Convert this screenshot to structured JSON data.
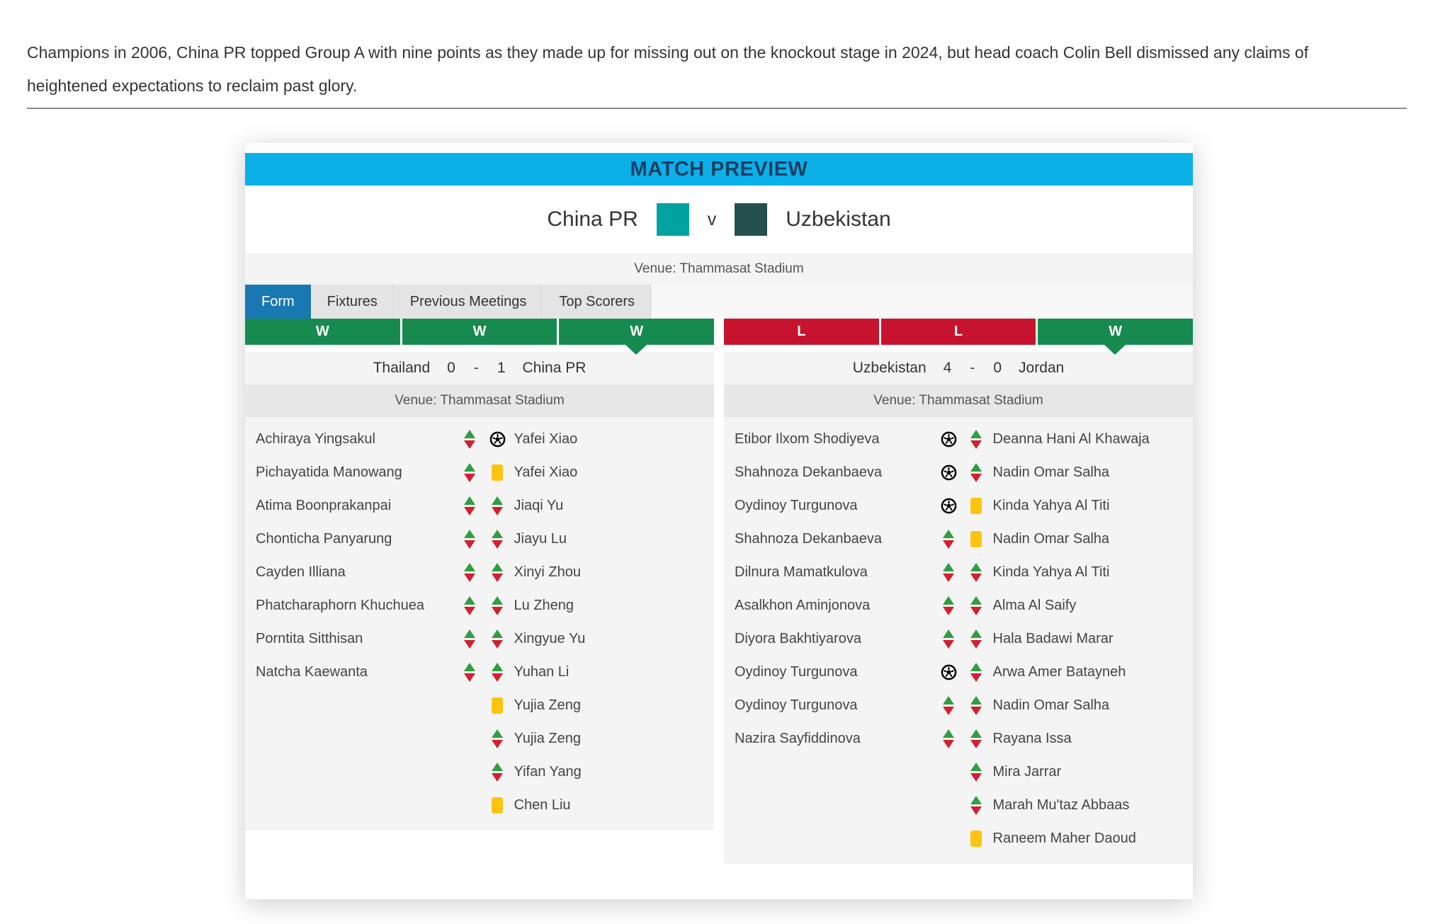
{
  "article": {
    "intro": "Champions in 2006, China PR topped Group A with nine points as they made up for missing out on the knockout stage in 2024, but head coach Colin Bell dismissed any claims of heightened expectations to reclaim past glory."
  },
  "preview": {
    "title": "MATCH PREVIEW",
    "home_team": "China PR",
    "versus": "v",
    "away_team": "Uzbekistan",
    "home_color": "#00a3a1",
    "away_color": "#234f4e",
    "venue": "Venue: Thammasat Stadium",
    "header_bg": "#0cb0e8",
    "header_text_color": "#173f63",
    "active_tab_color": "#1878b2",
    "tabs": [
      {
        "label": "Form",
        "active": true
      },
      {
        "label": "Fixtures",
        "active": false
      },
      {
        "label": "Previous Meetings",
        "active": false
      },
      {
        "label": "Top Scorers",
        "active": false
      }
    ],
    "colors": {
      "W": "#178a50",
      "L": "#c8132e"
    },
    "icon_legend": {
      "sub": "substitution-arrows-icon",
      "goal": "soccer-ball-icon",
      "yellow": "yellow-card-icon"
    },
    "panels": [
      {
        "form": [
          "W",
          "W",
          "W"
        ],
        "selected_index": 2,
        "match": {
          "home": "Thailand",
          "home_score": "0",
          "sep": "-",
          "away_score": "1",
          "away": "China PR"
        },
        "venue": "Venue: Thammasat Stadium",
        "rows": [
          {
            "left": "Achiraya Yingsakul",
            "icon1": "sub",
            "icon2": "goal",
            "right": "Yafei Xiao"
          },
          {
            "left": "Pichayatida Manowang",
            "icon1": "sub",
            "icon2": "yellow",
            "right": "Yafei Xiao"
          },
          {
            "left": "Atima Boonprakanpai",
            "icon1": "sub",
            "icon2": "sub",
            "right": "Jiaqi Yu"
          },
          {
            "left": "Chonticha Panyarung",
            "icon1": "sub",
            "icon2": "sub",
            "right": "Jiayu Lu"
          },
          {
            "left": "Cayden Illiana",
            "icon1": "sub",
            "icon2": "sub",
            "right": "Xinyi Zhou"
          },
          {
            "left": "Phatcharaphorn Khuchuea",
            "icon1": "sub",
            "icon2": "sub",
            "right": "Lu Zheng"
          },
          {
            "left": "Porntita Sitthisan",
            "icon1": "sub",
            "icon2": "sub",
            "right": "Xingyue Yu"
          },
          {
            "left": "Natcha Kaewanta",
            "icon1": "sub",
            "icon2": "sub",
            "right": "Yuhan Li"
          },
          {
            "left": "",
            "icon1": "",
            "icon2": "yellow",
            "right": "Yujia Zeng"
          },
          {
            "left": "",
            "icon1": "",
            "icon2": "sub",
            "right": "Yujia Zeng"
          },
          {
            "left": "",
            "icon1": "",
            "icon2": "sub",
            "right": "Yifan Yang"
          },
          {
            "left": "",
            "icon1": "",
            "icon2": "yellow",
            "right": "Chen Liu"
          }
        ]
      },
      {
        "form": [
          "L",
          "L",
          "W"
        ],
        "selected_index": 2,
        "match": {
          "home": "Uzbekistan",
          "home_score": "4",
          "sep": "-",
          "away_score": "0",
          "away": "Jordan"
        },
        "venue": "Venue: Thammasat Stadium",
        "rows": [
          {
            "left": "Etibor Ilxom Shodiyeva",
            "icon1": "goal",
            "icon2": "sub",
            "right": "Deanna Hani Al Khawaja"
          },
          {
            "left": "Shahnoza Dekanbaeva",
            "icon1": "goal",
            "icon2": "sub",
            "right": "Nadin Omar Salha"
          },
          {
            "left": "Oydinoy Turgunova",
            "icon1": "goal",
            "icon2": "yellow",
            "right": "Kinda Yahya Al Titi"
          },
          {
            "left": "Shahnoza Dekanbaeva",
            "icon1": "sub",
            "icon2": "yellow",
            "right": "Nadin Omar Salha"
          },
          {
            "left": "Dilnura Mamatkulova",
            "icon1": "sub",
            "icon2": "sub",
            "right": "Kinda Yahya Al Titi"
          },
          {
            "left": "Asalkhon Aminjonova",
            "icon1": "sub",
            "icon2": "sub",
            "right": "Alma Al Saify"
          },
          {
            "left": "Diyora Bakhtiyarova",
            "icon1": "sub",
            "icon2": "sub",
            "right": "Hala Badawi Marar"
          },
          {
            "left": "Oydinoy Turgunova",
            "icon1": "goal",
            "icon2": "sub",
            "right": "Arwa Amer Batayneh"
          },
          {
            "left": "Oydinoy Turgunova",
            "icon1": "sub",
            "icon2": "sub",
            "right": "Nadin Omar Salha"
          },
          {
            "left": "Nazira Sayfiddinova",
            "icon1": "sub",
            "icon2": "sub",
            "right": "Rayana Issa"
          },
          {
            "left": "",
            "icon1": "",
            "icon2": "sub",
            "right": "Mira Jarrar"
          },
          {
            "left": "",
            "icon1": "",
            "icon2": "sub",
            "right": "Marah Mu'taz Abbaas"
          },
          {
            "left": "",
            "icon1": "",
            "icon2": "yellow",
            "right": "Raneem Maher Daoud"
          }
        ]
      }
    ]
  }
}
